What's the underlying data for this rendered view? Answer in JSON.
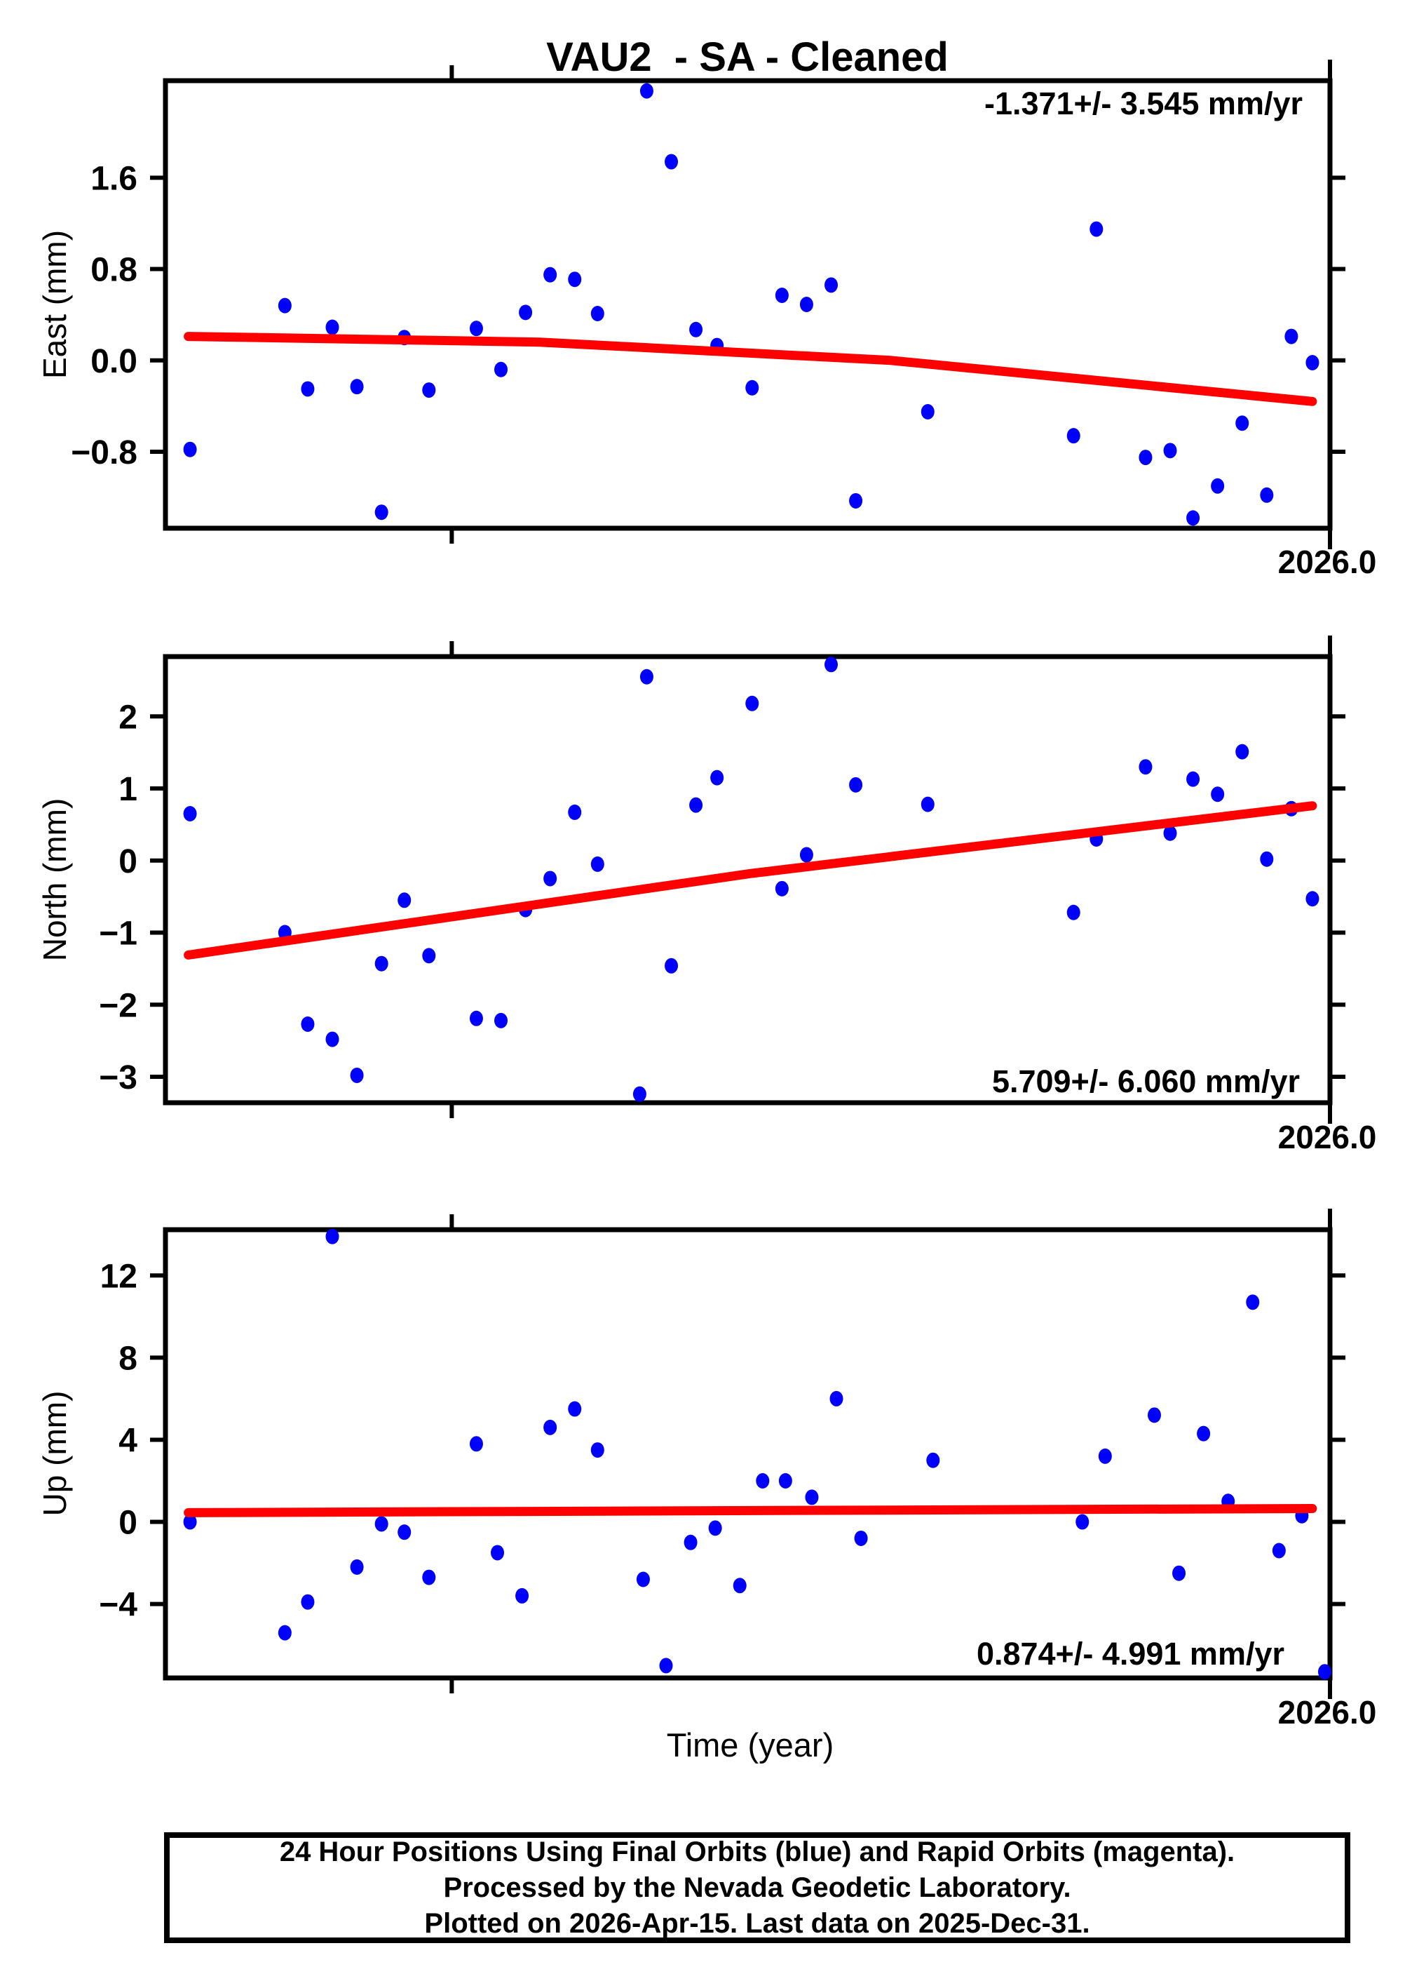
{
  "chart_data": {
    "type": "scatter",
    "title": "VAU2  - SA - Cleaned",
    "point_color": "#0000ff",
    "trend_color": "#ff0000",
    "frame_color": "#000000",
    "rapid_orbit_color": "#ff00ff",
    "x_axis": {
      "label": "Time (year)",
      "min": 2025.337,
      "max": 2026.0,
      "minor_tick": 2025.5,
      "major_tick": 2026.0,
      "major_tick_label": "2026.0"
    },
    "charts": [
      {
        "id": "east",
        "ylabel": "East (mm)",
        "annotation": "-1.371+/- 3.545 mm/yr",
        "annotation_corner": "top-right",
        "ylim": [
          -1.47,
          2.45
        ],
        "yticks": [
          {
            "v": 1.6,
            "label": "1.6"
          },
          {
            "v": 0.8,
            "label": "0.8"
          },
          {
            "v": 0.0,
            "label": "0.0"
          },
          {
            "v": -0.8,
            "label": "−0.8"
          }
        ],
        "trend": [
          [
            2025.35,
            0.21
          ],
          [
            2025.55,
            0.16
          ],
          [
            2025.75,
            0.0
          ],
          [
            2025.99,
            -0.36
          ]
        ],
        "points": [
          [
            2025.351,
            -0.78
          ],
          [
            2025.405,
            0.48
          ],
          [
            2025.418,
            -0.25
          ],
          [
            2025.432,
            0.29
          ],
          [
            2025.446,
            -0.23
          ],
          [
            2025.46,
            -1.33
          ],
          [
            2025.473,
            0.2
          ],
          [
            2025.487,
            -0.26
          ],
          [
            2025.514,
            0.28
          ],
          [
            2025.528,
            -0.08
          ],
          [
            2025.542,
            0.42
          ],
          [
            2025.556,
            0.75
          ],
          [
            2025.57,
            0.71
          ],
          [
            2025.583,
            0.41
          ],
          [
            2025.611,
            2.36
          ],
          [
            2025.625,
            1.74
          ],
          [
            2025.639,
            0.27
          ],
          [
            2025.651,
            0.13
          ],
          [
            2025.671,
            -0.24
          ],
          [
            2025.688,
            0.57
          ],
          [
            2025.702,
            0.49
          ],
          [
            2025.716,
            0.66
          ],
          [
            2025.73,
            -1.23
          ],
          [
            2025.771,
            -0.45
          ],
          [
            2025.854,
            -0.66
          ],
          [
            2025.867,
            1.15
          ],
          [
            2025.895,
            -0.85
          ],
          [
            2025.909,
            -0.79
          ],
          [
            2025.922,
            -1.38
          ],
          [
            2025.936,
            -1.1
          ],
          [
            2025.95,
            -0.55
          ],
          [
            2025.964,
            -1.18
          ],
          [
            2025.978,
            0.21
          ],
          [
            2025.99,
            -0.02
          ]
        ]
      },
      {
        "id": "north",
        "ylabel": "North (mm)",
        "annotation": "5.709+/- 6.060 mm/yr",
        "annotation_corner": "bottom-right",
        "ylim": [
          -3.36,
          2.83
        ],
        "yticks": [
          {
            "v": 2,
            "label": "2"
          },
          {
            "v": 1,
            "label": "1"
          },
          {
            "v": 0,
            "label": "0"
          },
          {
            "v": -1,
            "label": "−1"
          },
          {
            "v": -2,
            "label": "−2"
          },
          {
            "v": -3,
            "label": "−3"
          }
        ],
        "trend": [
          [
            2025.35,
            -1.31
          ],
          [
            2025.67,
            -0.18
          ],
          [
            2025.99,
            0.76
          ]
        ],
        "points": [
          [
            2025.351,
            0.65
          ],
          [
            2025.405,
            -1.0
          ],
          [
            2025.418,
            -2.27
          ],
          [
            2025.432,
            -2.48
          ],
          [
            2025.446,
            -2.98
          ],
          [
            2025.46,
            -1.43
          ],
          [
            2025.473,
            -0.55
          ],
          [
            2025.487,
            -1.32
          ],
          [
            2025.514,
            -2.19
          ],
          [
            2025.528,
            -2.22
          ],
          [
            2025.542,
            -0.68
          ],
          [
            2025.556,
            -0.25
          ],
          [
            2025.57,
            0.67
          ],
          [
            2025.583,
            -0.05
          ],
          [
            2025.607,
            -3.24
          ],
          [
            2025.611,
            2.55
          ],
          [
            2025.625,
            -1.46
          ],
          [
            2025.639,
            0.77
          ],
          [
            2025.651,
            1.15
          ],
          [
            2025.671,
            2.18
          ],
          [
            2025.688,
            -0.39
          ],
          [
            2025.702,
            0.08
          ],
          [
            2025.716,
            2.72
          ],
          [
            2025.73,
            1.05
          ],
          [
            2025.771,
            0.78
          ],
          [
            2025.854,
            -0.72
          ],
          [
            2025.867,
            0.3
          ],
          [
            2025.895,
            1.3
          ],
          [
            2025.909,
            0.38
          ],
          [
            2025.922,
            1.13
          ],
          [
            2025.936,
            0.92
          ],
          [
            2025.95,
            1.51
          ],
          [
            2025.964,
            0.02
          ],
          [
            2025.978,
            0.72
          ],
          [
            2025.99,
            -0.53
          ]
        ]
      },
      {
        "id": "up",
        "ylabel": "Up (mm)",
        "annotation": "0.874+/- 4.991 mm/yr",
        "annotation_corner": "bottom-right",
        "ylim": [
          -7.6,
          14.23
        ],
        "yticks": [
          {
            "v": 12,
            "label": "12"
          },
          {
            "v": 8,
            "label": "8"
          },
          {
            "v": 4,
            "label": "4"
          },
          {
            "v": 0,
            "label": "0"
          },
          {
            "v": -4,
            "label": "−4"
          }
        ],
        "trend": [
          [
            2025.35,
            0.45
          ],
          [
            2025.99,
            0.65
          ]
        ],
        "points": [
          [
            2025.351,
            0.0
          ],
          [
            2025.405,
            -5.4
          ],
          [
            2025.418,
            -3.9
          ],
          [
            2025.432,
            13.9
          ],
          [
            2025.446,
            -2.2
          ],
          [
            2025.46,
            -0.1
          ],
          [
            2025.473,
            -0.5
          ],
          [
            2025.487,
            -2.7
          ],
          [
            2025.514,
            3.8
          ],
          [
            2025.526,
            -1.5
          ],
          [
            2025.54,
            -3.6
          ],
          [
            2025.556,
            4.6
          ],
          [
            2025.57,
            5.5
          ],
          [
            2025.583,
            3.5
          ],
          [
            2025.609,
            -2.8
          ],
          [
            2025.622,
            -7.0
          ],
          [
            2025.636,
            -1.0
          ],
          [
            2025.65,
            -0.3
          ],
          [
            2025.664,
            -3.1
          ],
          [
            2025.677,
            2.0
          ],
          [
            2025.69,
            2.0
          ],
          [
            2025.705,
            1.2
          ],
          [
            2025.719,
            6.0
          ],
          [
            2025.733,
            -0.8
          ],
          [
            2025.774,
            3.0
          ],
          [
            2025.859,
            0.0
          ],
          [
            2025.872,
            3.2
          ],
          [
            2025.9,
            5.2
          ],
          [
            2025.914,
            -2.5
          ],
          [
            2025.928,
            4.3
          ],
          [
            2025.942,
            1.0
          ],
          [
            2025.956,
            10.7
          ],
          [
            2025.971,
            -1.4
          ],
          [
            2025.984,
            0.3
          ],
          [
            2025.997,
            -7.3
          ]
        ]
      }
    ],
    "footer_lines": [
      "24 Hour Positions Using Final Orbits (blue) and Rapid Orbits (magenta).",
      "Processed by the Nevada Geodetic Laboratory.",
      "Plotted on 2026-Apr-15. Last data on 2025-Dec-31."
    ]
  }
}
